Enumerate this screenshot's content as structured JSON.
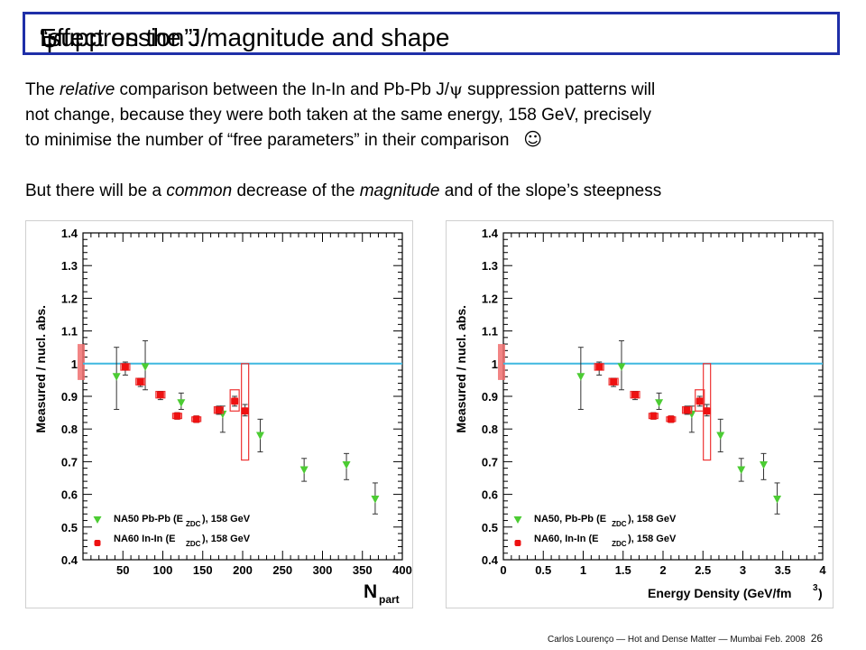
{
  "title": {
    "prefix": "Effect on the J/",
    "psi": "ψ",
    "suffix": " “suppression”: magnitude and shape"
  },
  "paragraph1": {
    "line1_a": "The ",
    "line1_em": "relative",
    "line1_b": " comparison between the In-In and Pb-Pb J/",
    "line1_psi": "ψ",
    "line1_c": " suppression patterns will",
    "line2": "not change, because they were both taken at the same energy, 158 GeV, precisely",
    "line3": "to minimise the number of “free parameters” in their comparison",
    "smiley": "☺"
  },
  "paragraph2": {
    "a": "But there will be a ",
    "em1": "common",
    "b": " decrease of the ",
    "em2": "magnitude",
    "c": " and of the slope’s steepness"
  },
  "footer": {
    "text": "Carlos Lourenço — Hot and Dense Matter — Mumbai Feb. 2008",
    "page": "26"
  },
  "colors": {
    "title_border": "#1f2fa8",
    "reference_line": "#3fb8e0",
    "na50": "#4ccc33",
    "na60": "#ee1111",
    "box": "#ee3333",
    "norm_band": "#f07070"
  },
  "chart_data": [
    {
      "type": "scatter",
      "xlabel": "N",
      "xlabel_sub": "part",
      "ylabel": "Measured / nucl. abs.",
      "xlim": [
        0,
        400
      ],
      "ylim": [
        0.4,
        1.4
      ],
      "xticks": [
        "50",
        "100",
        "150",
        "200",
        "250",
        "300",
        "350",
        "400"
      ],
      "yticks": [
        "0.4",
        "0.5",
        "0.6",
        "0.7",
        "0.8",
        "0.9",
        "1",
        "1.1",
        "1.2",
        "1.3",
        "1.4"
      ],
      "grid": false,
      "reference_y": 1.0,
      "norm_band": [
        0.95,
        1.06
      ],
      "legend": {
        "position": "bottom-left",
        "entries": [
          {
            "series": "na50",
            "main": "NA50 Pb-Pb (E",
            "sub": "ZDC",
            "tail": "), 158 GeV"
          },
          {
            "series": "na60",
            "main": "NA60 In-In (E",
            "sub": "ZDC",
            "tail": "), 158 GeV"
          }
        ]
      },
      "series": [
        {
          "key": "na50",
          "marker": "triangle-down",
          "points": [
            {
              "x": 42,
              "y": 0.96,
              "lo": 0.86,
              "hi": 1.05
            },
            {
              "x": 78,
              "y": 0.99,
              "lo": 0.92,
              "hi": 1.07
            },
            {
              "x": 123,
              "y": 0.88,
              "lo": 0.86,
              "hi": 0.91
            },
            {
              "x": 175,
              "y": 0.845,
              "lo": 0.79,
              "hi": 0.87
            },
            {
              "x": 222,
              "y": 0.78,
              "lo": 0.73,
              "hi": 0.83
            },
            {
              "x": 277,
              "y": 0.675,
              "lo": 0.64,
              "hi": 0.71
            },
            {
              "x": 330,
              "y": 0.69,
              "lo": 0.645,
              "hi": 0.725
            },
            {
              "x": 366,
              "y": 0.585,
              "lo": 0.54,
              "hi": 0.635
            }
          ]
        },
        {
          "key": "na60",
          "marker": "square",
          "points": [
            {
              "x": 53,
              "y": 0.99,
              "lo": 0.965,
              "hi": 1.005,
              "box": [
                0.98,
                1.0
              ]
            },
            {
              "x": 72,
              "y": 0.945,
              "lo": 0.93,
              "hi": 0.955,
              "box": [
                0.935,
                0.955
              ]
            },
            {
              "x": 97,
              "y": 0.905,
              "lo": 0.89,
              "hi": 0.915,
              "box": [
                0.895,
                0.915
              ]
            },
            {
              "x": 118,
              "y": 0.84,
              "lo": 0.83,
              "hi": 0.85,
              "box": [
                0.832,
                0.848
              ]
            },
            {
              "x": 142,
              "y": 0.83,
              "lo": 0.82,
              "hi": 0.84,
              "box": [
                0.823,
                0.837
              ]
            },
            {
              "x": 170,
              "y": 0.858,
              "lo": 0.845,
              "hi": 0.87,
              "box": [
                0.848,
                0.868
              ]
            },
            {
              "x": 190,
              "y": 0.885,
              "lo": 0.87,
              "hi": 0.9,
              "box": [
                0.855,
                0.92
              ]
            },
            {
              "x": 203,
              "y": 0.855,
              "lo": 0.84,
              "hi": 0.875,
              "box": [
                0.705,
                1.0
              ]
            }
          ]
        }
      ]
    },
    {
      "type": "scatter",
      "xlabel": "Energy Density (GeV/fm",
      "xlabel_sup": "3",
      "xlabel_end": ")",
      "ylabel": "Measured / nucl. abs.",
      "xlim": [
        0,
        4
      ],
      "ylim": [
        0.4,
        1.4
      ],
      "xticks": [
        "0",
        "0.5",
        "1",
        "1.5",
        "2",
        "2.5",
        "3",
        "3.5",
        "4"
      ],
      "yticks": [
        "0.4",
        "0.5",
        "0.6",
        "0.7",
        "0.8",
        "0.9",
        "1",
        "1.1",
        "1.2",
        "1.3",
        "1.4"
      ],
      "grid": false,
      "reference_y": 1.0,
      "norm_band": [
        0.95,
        1.06
      ],
      "legend": {
        "position": "bottom-left",
        "entries": [
          {
            "series": "na50",
            "main": "NA50, Pb-Pb (E",
            "sub": "ZDC",
            "tail": "), 158 GeV"
          },
          {
            "series": "na60",
            "main": "NA60, In-In (E",
            "sub": "ZDC",
            "tail": "), 158 GeV"
          }
        ]
      },
      "series": [
        {
          "key": "na50",
          "marker": "triangle-down",
          "points": [
            {
              "x": 0.97,
              "y": 0.96,
              "lo": 0.86,
              "hi": 1.05
            },
            {
              "x": 1.48,
              "y": 0.99,
              "lo": 0.92,
              "hi": 1.07
            },
            {
              "x": 1.95,
              "y": 0.88,
              "lo": 0.86,
              "hi": 0.91
            },
            {
              "x": 2.36,
              "y": 0.845,
              "lo": 0.79,
              "hi": 0.87
            },
            {
              "x": 2.72,
              "y": 0.78,
              "lo": 0.73,
              "hi": 0.83
            },
            {
              "x": 2.98,
              "y": 0.675,
              "lo": 0.64,
              "hi": 0.71
            },
            {
              "x": 3.26,
              "y": 0.69,
              "lo": 0.645,
              "hi": 0.725
            },
            {
              "x": 3.43,
              "y": 0.585,
              "lo": 0.54,
              "hi": 0.635
            }
          ]
        },
        {
          "key": "na60",
          "marker": "square",
          "points": [
            {
              "x": 1.2,
              "y": 0.99,
              "lo": 0.965,
              "hi": 1.005,
              "box": [
                0.98,
                1.0
              ]
            },
            {
              "x": 1.38,
              "y": 0.945,
              "lo": 0.93,
              "hi": 0.955,
              "box": [
                0.935,
                0.955
              ]
            },
            {
              "x": 1.65,
              "y": 0.905,
              "lo": 0.89,
              "hi": 0.915,
              "box": [
                0.895,
                0.915
              ]
            },
            {
              "x": 1.88,
              "y": 0.84,
              "lo": 0.83,
              "hi": 0.85,
              "box": [
                0.832,
                0.848
              ]
            },
            {
              "x": 2.1,
              "y": 0.83,
              "lo": 0.82,
              "hi": 0.84,
              "box": [
                0.823,
                0.837
              ]
            },
            {
              "x": 2.3,
              "y": 0.858,
              "lo": 0.845,
              "hi": 0.87,
              "box": [
                0.848,
                0.868
              ]
            },
            {
              "x": 2.46,
              "y": 0.885,
              "lo": 0.87,
              "hi": 0.9,
              "box": [
                0.855,
                0.92
              ]
            },
            {
              "x": 2.55,
              "y": 0.855,
              "lo": 0.84,
              "hi": 0.875,
              "box": [
                0.705,
                1.0
              ]
            }
          ]
        }
      ]
    }
  ]
}
